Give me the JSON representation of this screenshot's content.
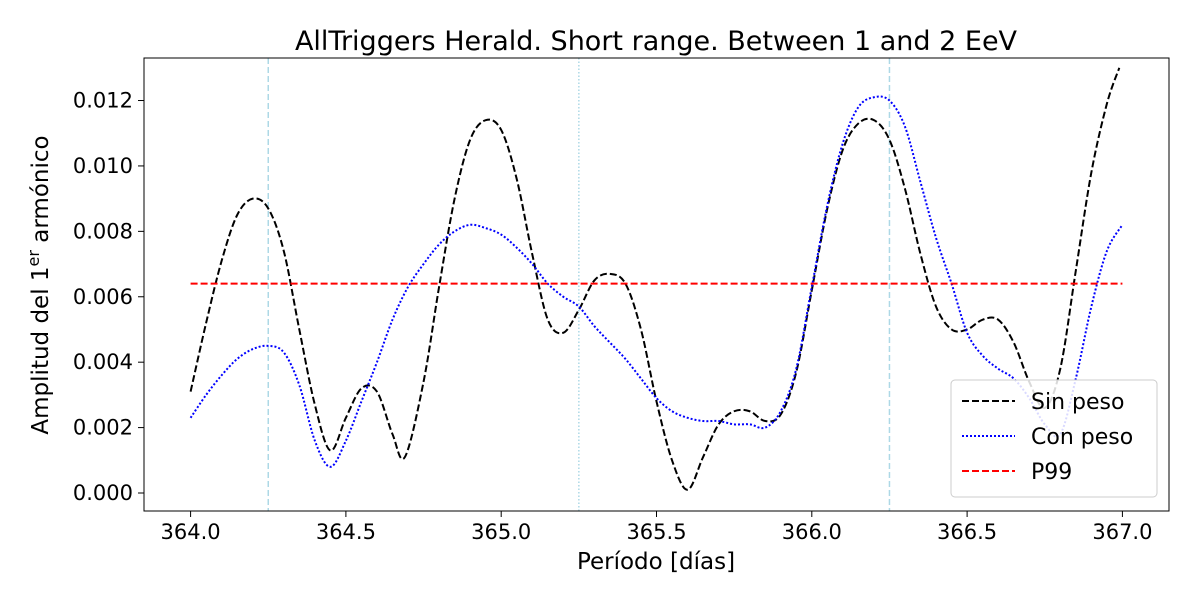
{
  "chart_data": {
    "type": "line",
    "title": "AllTriggers Herald. Short range. Between 1 and 2 EeV",
    "xlabel": "Período [días]",
    "ylabel_main": "Amplitud del 1",
    "ylabel_sup": "er",
    "ylabel_end": " armónico",
    "xlim": [
      363.85,
      367.15
    ],
    "ylim": [
      -0.00055,
      0.0133
    ],
    "xticks": [
      364.0,
      364.5,
      365.0,
      365.5,
      366.0,
      366.5,
      367.0
    ],
    "xtick_labels": [
      "364.0",
      "364.5",
      "365.0",
      "365.5",
      "366.0",
      "366.5",
      "367.0"
    ],
    "yticks": [
      0.0,
      0.002,
      0.004,
      0.006,
      0.008,
      0.01,
      0.012
    ],
    "ytick_labels": [
      "0.000",
      "0.002",
      "0.004",
      "0.006",
      "0.008",
      "0.010",
      "0.012"
    ],
    "grid": false,
    "legend_position": "lower-right",
    "vlines": [
      {
        "x": 364.25,
        "style": "dashed",
        "color": "#add8e6"
      },
      {
        "x": 365.25,
        "style": "dotted",
        "color": "#add8e6"
      },
      {
        "x": 366.25,
        "style": "dashed",
        "color": "#add8e6"
      }
    ],
    "series": [
      {
        "name": "Sin peso",
        "color": "#000000",
        "style": "dashed",
        "x": [
          364.0,
          364.05,
          364.1,
          364.15,
          364.2,
          364.25,
          364.3,
          364.35,
          364.4,
          364.45,
          364.5,
          364.55,
          364.6,
          364.65,
          364.69,
          364.75,
          364.8,
          364.85,
          364.9,
          364.95,
          365.0,
          365.05,
          365.1,
          365.15,
          365.2,
          365.25,
          365.3,
          365.35,
          365.4,
          365.45,
          365.5,
          365.55,
          365.6,
          365.65,
          365.7,
          365.75,
          365.8,
          365.85,
          365.9,
          365.95,
          366.0,
          366.05,
          366.1,
          366.15,
          366.2,
          366.25,
          366.3,
          366.35,
          366.4,
          366.45,
          366.5,
          366.55,
          366.6,
          366.65,
          366.7,
          366.75,
          366.8,
          366.85,
          366.9,
          366.95,
          366.99
        ],
        "y": [
          0.0031,
          0.0052,
          0.0071,
          0.0085,
          0.009,
          0.0087,
          0.0074,
          0.005,
          0.0027,
          0.0013,
          0.0023,
          0.0032,
          0.0031,
          0.0018,
          0.0011,
          0.0034,
          0.0063,
          0.009,
          0.0108,
          0.0114,
          0.0111,
          0.0096,
          0.0073,
          0.0053,
          0.0049,
          0.0056,
          0.0065,
          0.0067,
          0.0064,
          0.005,
          0.0028,
          0.001,
          0.0001,
          0.0011,
          0.0021,
          0.0025,
          0.0025,
          0.0022,
          0.0024,
          0.0037,
          0.0062,
          0.0087,
          0.0105,
          0.0113,
          0.0114,
          0.0108,
          0.0093,
          0.0073,
          0.0057,
          0.005,
          0.005,
          0.0053,
          0.0053,
          0.0046,
          0.0034,
          0.0026,
          0.0038,
          0.0068,
          0.0098,
          0.0119,
          0.013
        ]
      },
      {
        "name": "Con peso",
        "color": "#0000ff",
        "style": "dotted",
        "x": [
          364.0,
          364.05,
          364.1,
          364.15,
          364.2,
          364.25,
          364.3,
          364.35,
          364.4,
          364.45,
          364.5,
          364.55,
          364.6,
          364.65,
          364.7,
          364.75,
          364.8,
          364.85,
          364.9,
          364.95,
          365.0,
          365.05,
          365.1,
          365.15,
          365.2,
          365.25,
          365.3,
          365.35,
          365.4,
          365.45,
          365.5,
          365.55,
          365.6,
          365.65,
          365.7,
          365.75,
          365.8,
          365.85,
          365.9,
          365.95,
          366.0,
          366.05,
          366.1,
          366.15,
          366.2,
          366.25,
          366.3,
          366.35,
          366.4,
          366.45,
          366.5,
          366.55,
          366.6,
          366.65,
          366.7,
          366.75,
          366.8,
          366.85,
          366.9,
          366.95,
          367.0
        ],
        "y": [
          0.0023,
          0.003,
          0.0036,
          0.0041,
          0.0044,
          0.0045,
          0.0043,
          0.0033,
          0.0016,
          0.0008,
          0.0016,
          0.0028,
          0.004,
          0.0053,
          0.0063,
          0.007,
          0.0076,
          0.008,
          0.0082,
          0.0081,
          0.0079,
          0.0075,
          0.007,
          0.0064,
          0.006,
          0.0057,
          0.0051,
          0.0046,
          0.0041,
          0.0035,
          0.0029,
          0.0025,
          0.0023,
          0.0022,
          0.0022,
          0.0021,
          0.0021,
          0.002,
          0.0025,
          0.0038,
          0.0063,
          0.0088,
          0.0107,
          0.0118,
          0.0121,
          0.012,
          0.0112,
          0.0095,
          0.0078,
          0.0064,
          0.0049,
          0.0042,
          0.0038,
          0.0035,
          0.0029,
          0.0021,
          0.0018,
          0.0035,
          0.0057,
          0.0074,
          0.0082
        ]
      },
      {
        "name": "P99",
        "color": "#ff0000",
        "style": "dashed",
        "x": [
          364.0,
          367.0
        ],
        "y": [
          0.0064,
          0.0064
        ]
      }
    ]
  }
}
